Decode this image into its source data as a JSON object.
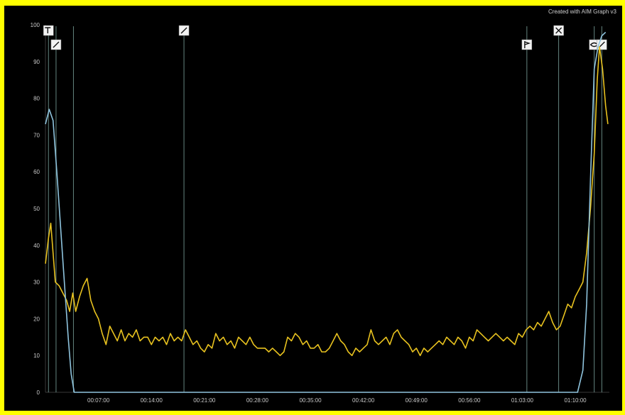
{
  "watermark": "Created with AIM Graph v3",
  "colors": {
    "background": "#000000",
    "border": "#ffff00",
    "series_yellow": "#e8c21f",
    "series_blue": "#8fc4de",
    "marker_line": "#7fa7a0",
    "tick_label": "#c8c8c8"
  },
  "chart_data": {
    "type": "line",
    "title": "",
    "xlabel": "",
    "ylabel": "",
    "x_unit": "minutes",
    "xlim": [
      0,
      74.5
    ],
    "ylim": [
      0,
      100
    ],
    "y_ticks": [
      0,
      10,
      20,
      30,
      40,
      50,
      60,
      70,
      80,
      90,
      100
    ],
    "x_ticks": [
      {
        "minute": 7,
        "label": "00:07:00"
      },
      {
        "minute": 14,
        "label": "00:14:00"
      },
      {
        "minute": 21,
        "label": "00:21:00"
      },
      {
        "minute": 28,
        "label": "00:28:00"
      },
      {
        "minute": 35,
        "label": "00:35:00"
      },
      {
        "minute": 42,
        "label": "00:42:00"
      },
      {
        "minute": 49,
        "label": "00:49:00"
      },
      {
        "minute": 56,
        "label": "00:56:00"
      },
      {
        "minute": 63,
        "label": "01:03:00"
      },
      {
        "minute": 70,
        "label": "01:10:00"
      }
    ],
    "grid": false,
    "legend": "none",
    "markers": [
      {
        "minute": 0.4,
        "icon": "hammer-icon",
        "row": 0
      },
      {
        "minute": 1.4,
        "icon": "slash-icon",
        "row": 1
      },
      {
        "minute": 3.7,
        "icon": "",
        "row": -1
      },
      {
        "minute": 18.3,
        "icon": "slash-icon",
        "row": 0
      },
      {
        "minute": 63.6,
        "icon": "flag-icon",
        "row": 1
      },
      {
        "minute": 67.8,
        "icon": "cross-icon",
        "row": 0
      },
      {
        "minute": 72.5,
        "icon": "eye-icon",
        "row": 1
      },
      {
        "minute": 73.5,
        "icon": "slash-icon",
        "row": 1
      }
    ],
    "series": [
      {
        "color": "#e8c21f",
        "points": [
          [
            0,
            35
          ],
          [
            0.4,
            42
          ],
          [
            0.7,
            46
          ],
          [
            1,
            38
          ],
          [
            1.3,
            30
          ],
          [
            1.8,
            29
          ],
          [
            2.3,
            27
          ],
          [
            2.8,
            25
          ],
          [
            3.2,
            22
          ],
          [
            3.6,
            27
          ],
          [
            4,
            22
          ],
          [
            4.5,
            26
          ],
          [
            5,
            29
          ],
          [
            5.5,
            31
          ],
          [
            6,
            25
          ],
          [
            6.5,
            22
          ],
          [
            7,
            20
          ],
          [
            7.5,
            16
          ],
          [
            8,
            13
          ],
          [
            8.5,
            18
          ],
          [
            9,
            16
          ],
          [
            9.5,
            14
          ],
          [
            10,
            17
          ],
          [
            10.5,
            14
          ],
          [
            11,
            16
          ],
          [
            11.5,
            15
          ],
          [
            12,
            17
          ],
          [
            12.5,
            14
          ],
          [
            13,
            15
          ],
          [
            13.5,
            15
          ],
          [
            14,
            13
          ],
          [
            14.5,
            15
          ],
          [
            15,
            14
          ],
          [
            15.5,
            15
          ],
          [
            16,
            13
          ],
          [
            16.5,
            16
          ],
          [
            17,
            14
          ],
          [
            17.5,
            15
          ],
          [
            18,
            14
          ],
          [
            18.5,
            17
          ],
          [
            19,
            15
          ],
          [
            19.5,
            13
          ],
          [
            20,
            14
          ],
          [
            20.5,
            12
          ],
          [
            21,
            11
          ],
          [
            21.5,
            13
          ],
          [
            22,
            12
          ],
          [
            22.5,
            16
          ],
          [
            23,
            14
          ],
          [
            23.5,
            15
          ],
          [
            24,
            13
          ],
          [
            24.5,
            14
          ],
          [
            25,
            12
          ],
          [
            25.5,
            15
          ],
          [
            26,
            14
          ],
          [
            26.5,
            13
          ],
          [
            27,
            15
          ],
          [
            27.5,
            13
          ],
          [
            28,
            12
          ],
          [
            28.5,
            12
          ],
          [
            29,
            12
          ],
          [
            29.5,
            11
          ],
          [
            30,
            12
          ],
          [
            30.5,
            11
          ],
          [
            31,
            10
          ],
          [
            31.5,
            11
          ],
          [
            32,
            15
          ],
          [
            32.5,
            14
          ],
          [
            33,
            16
          ],
          [
            33.5,
            15
          ],
          [
            34,
            13
          ],
          [
            34.5,
            14
          ],
          [
            35,
            12
          ],
          [
            35.5,
            12
          ],
          [
            36,
            13
          ],
          [
            36.5,
            11
          ],
          [
            37,
            11
          ],
          [
            37.5,
            12
          ],
          [
            38,
            14
          ],
          [
            38.5,
            16
          ],
          [
            39,
            14
          ],
          [
            39.5,
            13
          ],
          [
            40,
            11
          ],
          [
            40.5,
            10
          ],
          [
            41,
            12
          ],
          [
            41.5,
            11
          ],
          [
            42,
            12
          ],
          [
            42.5,
            13
          ],
          [
            43,
            17
          ],
          [
            43.5,
            14
          ],
          [
            44,
            13
          ],
          [
            44.5,
            14
          ],
          [
            45,
            15
          ],
          [
            45.5,
            13
          ],
          [
            46,
            16
          ],
          [
            46.5,
            17
          ],
          [
            47,
            15
          ],
          [
            47.5,
            14
          ],
          [
            48,
            13
          ],
          [
            48.5,
            11
          ],
          [
            49,
            12
          ],
          [
            49.5,
            10
          ],
          [
            50,
            12
          ],
          [
            50.5,
            11
          ],
          [
            51,
            12
          ],
          [
            51.5,
            13
          ],
          [
            52,
            14
          ],
          [
            52.5,
            13
          ],
          [
            53,
            15
          ],
          [
            53.5,
            14
          ],
          [
            54,
            13
          ],
          [
            54.5,
            15
          ],
          [
            55,
            14
          ],
          [
            55.5,
            12
          ],
          [
            56,
            15
          ],
          [
            56.5,
            14
          ],
          [
            57,
            17
          ],
          [
            57.5,
            16
          ],
          [
            58,
            15
          ],
          [
            58.5,
            14
          ],
          [
            59,
            15
          ],
          [
            59.5,
            16
          ],
          [
            60,
            15
          ],
          [
            60.5,
            14
          ],
          [
            61,
            15
          ],
          [
            61.5,
            14
          ],
          [
            62,
            13
          ],
          [
            62.5,
            16
          ],
          [
            63,
            15
          ],
          [
            63.5,
            17
          ],
          [
            64,
            18
          ],
          [
            64.5,
            17
          ],
          [
            65,
            19
          ],
          [
            65.5,
            18
          ],
          [
            66,
            20
          ],
          [
            66.5,
            22
          ],
          [
            67,
            19
          ],
          [
            67.5,
            17
          ],
          [
            68,
            18
          ],
          [
            68.5,
            21
          ],
          [
            69,
            24
          ],
          [
            69.5,
            23
          ],
          [
            70,
            26
          ],
          [
            70.5,
            28
          ],
          [
            71,
            30
          ],
          [
            71.5,
            38
          ],
          [
            72,
            50
          ],
          [
            72.5,
            65
          ],
          [
            72.9,
            85
          ],
          [
            73.2,
            94
          ],
          [
            73.6,
            88
          ],
          [
            74,
            78
          ],
          [
            74.3,
            73
          ]
        ]
      },
      {
        "color": "#8fc4de",
        "points": [
          [
            0,
            73
          ],
          [
            0.5,
            77
          ],
          [
            1,
            74
          ],
          [
            1.5,
            60
          ],
          [
            2,
            45
          ],
          [
            2.5,
            30
          ],
          [
            3,
            15
          ],
          [
            3.4,
            5
          ],
          [
            3.8,
            0
          ],
          [
            4.2,
            0
          ],
          [
            6,
            0
          ],
          [
            10,
            0
          ],
          [
            20,
            0
          ],
          [
            30,
            0
          ],
          [
            40,
            0
          ],
          [
            50,
            0
          ],
          [
            60,
            0
          ],
          [
            67,
            0
          ],
          [
            70.3,
            0
          ],
          [
            71,
            6
          ],
          [
            71.5,
            24
          ],
          [
            72,
            58
          ],
          [
            72.5,
            88
          ],
          [
            73,
            94
          ],
          [
            73.5,
            97
          ],
          [
            74,
            98
          ]
        ]
      }
    ]
  }
}
